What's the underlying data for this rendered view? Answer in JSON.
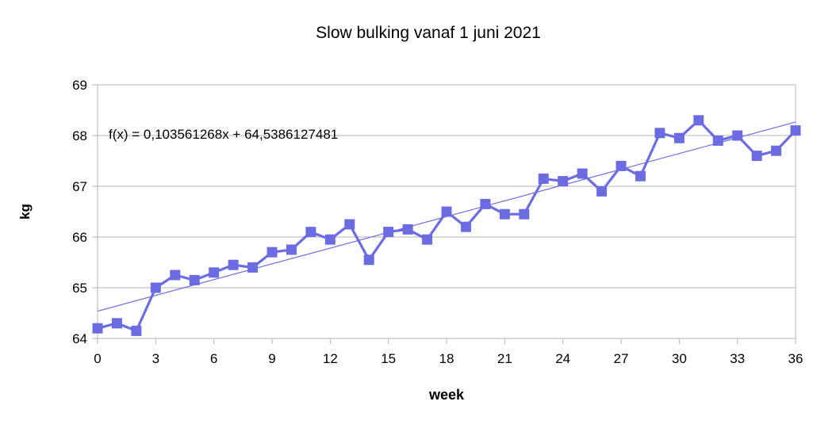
{
  "title": "Slow bulking vanaf 1 juni 2021",
  "chart_data": {
    "type": "line",
    "title": "Slow bulking vanaf 1 juni 2021",
    "xlabel": "week",
    "ylabel": "kg",
    "x": [
      0,
      1,
      2,
      3,
      4,
      5,
      6,
      7,
      8,
      9,
      10,
      11,
      12,
      13,
      14,
      15,
      16,
      17,
      18,
      19,
      20,
      21,
      22,
      23,
      24,
      25,
      26,
      27,
      28,
      29,
      30,
      31,
      32,
      33,
      34,
      35,
      36
    ],
    "series": [
      {
        "name": "kg",
        "marker": "square",
        "values": [
          64.2,
          64.3,
          64.15,
          65.0,
          65.25,
          65.15,
          65.3,
          65.45,
          65.4,
          65.7,
          65.75,
          66.1,
          65.95,
          66.25,
          65.55,
          66.1,
          66.15,
          65.95,
          66.5,
          66.2,
          66.65,
          66.45,
          66.45,
          67.15,
          67.1,
          67.25,
          66.9,
          67.4,
          67.2,
          68.05,
          67.95,
          68.3,
          67.9,
          68.0,
          67.6,
          67.7,
          68.1
        ]
      }
    ],
    "trendline": {
      "slope": 0.103561268,
      "intercept": 64.5386127481,
      "label": "f(x) = 0,103561268x + 64,5386127481"
    },
    "xlim": [
      0,
      36
    ],
    "ylim": [
      64,
      69
    ],
    "x_ticks": [
      0,
      3,
      6,
      9,
      12,
      15,
      18,
      21,
      24,
      27,
      30,
      33,
      36
    ],
    "y_ticks": [
      64,
      65,
      66,
      67,
      68,
      69
    ],
    "grid": "horizontal",
    "legend": "none",
    "colors": {
      "series": "#6c6ce2",
      "trend": "#6c6ce2",
      "grid": "#b3b3b3",
      "axis": "#b3b3b3",
      "text": "#000000",
      "background": "#ffffff"
    }
  }
}
